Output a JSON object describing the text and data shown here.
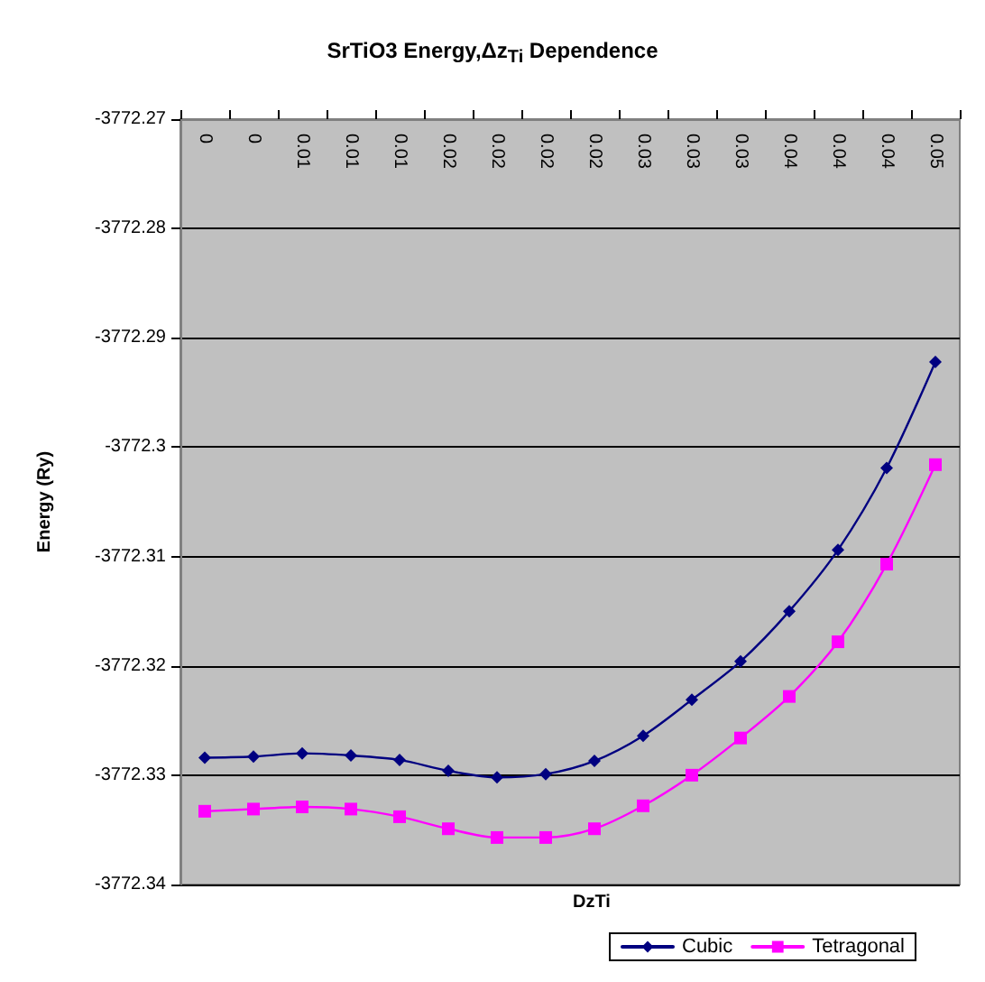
{
  "chart_data": {
    "type": "line",
    "title": "SrTiO3 Energy,Δz$_{Ti}$ Dependence",
    "xlabel": "DzTi",
    "ylabel": "Energy (Ry)",
    "categories": [
      "0",
      "0",
      "0.01",
      "0.01",
      "0.01",
      "0.02",
      "0.02",
      "0.02",
      "0.02",
      "0.03",
      "0.03",
      "0.03",
      "0.04",
      "0.04",
      "0.04",
      "0.05"
    ],
    "series": [
      {
        "name": "Cubic",
        "color": "#000080",
        "marker": "diamond",
        "values": [
          -3772.3284,
          -3772.3283,
          -3772.328,
          -3772.3282,
          -3772.3286,
          -3772.3296,
          -3772.3302,
          -3772.3299,
          -3772.3287,
          -3772.3264,
          -3772.3231,
          -3772.3196,
          -3772.315,
          -3772.3094,
          -3772.3019,
          -3772.2922
        ]
      },
      {
        "name": "Tetragonal",
        "color": "#ff00ff",
        "marker": "square",
        "values": [
          -3772.3333,
          -3772.3331,
          -3772.3329,
          -3772.3331,
          -3772.3338,
          -3772.3349,
          -3772.3357,
          -3772.3357,
          -3772.3349,
          -3772.3328,
          -3772.33,
          -3772.3266,
          -3772.3228,
          -3772.3178,
          -3772.3107,
          -3772.3016
        ]
      }
    ],
    "ylim": [
      -3772.34,
      -3772.27
    ],
    "yticks": [
      -3772.34,
      -3772.33,
      -3772.32,
      -3772.31,
      -3772.3,
      -3772.29,
      -3772.28,
      -3772.27
    ],
    "grid": "y",
    "legend": "bottom",
    "line_style": "solid"
  }
}
